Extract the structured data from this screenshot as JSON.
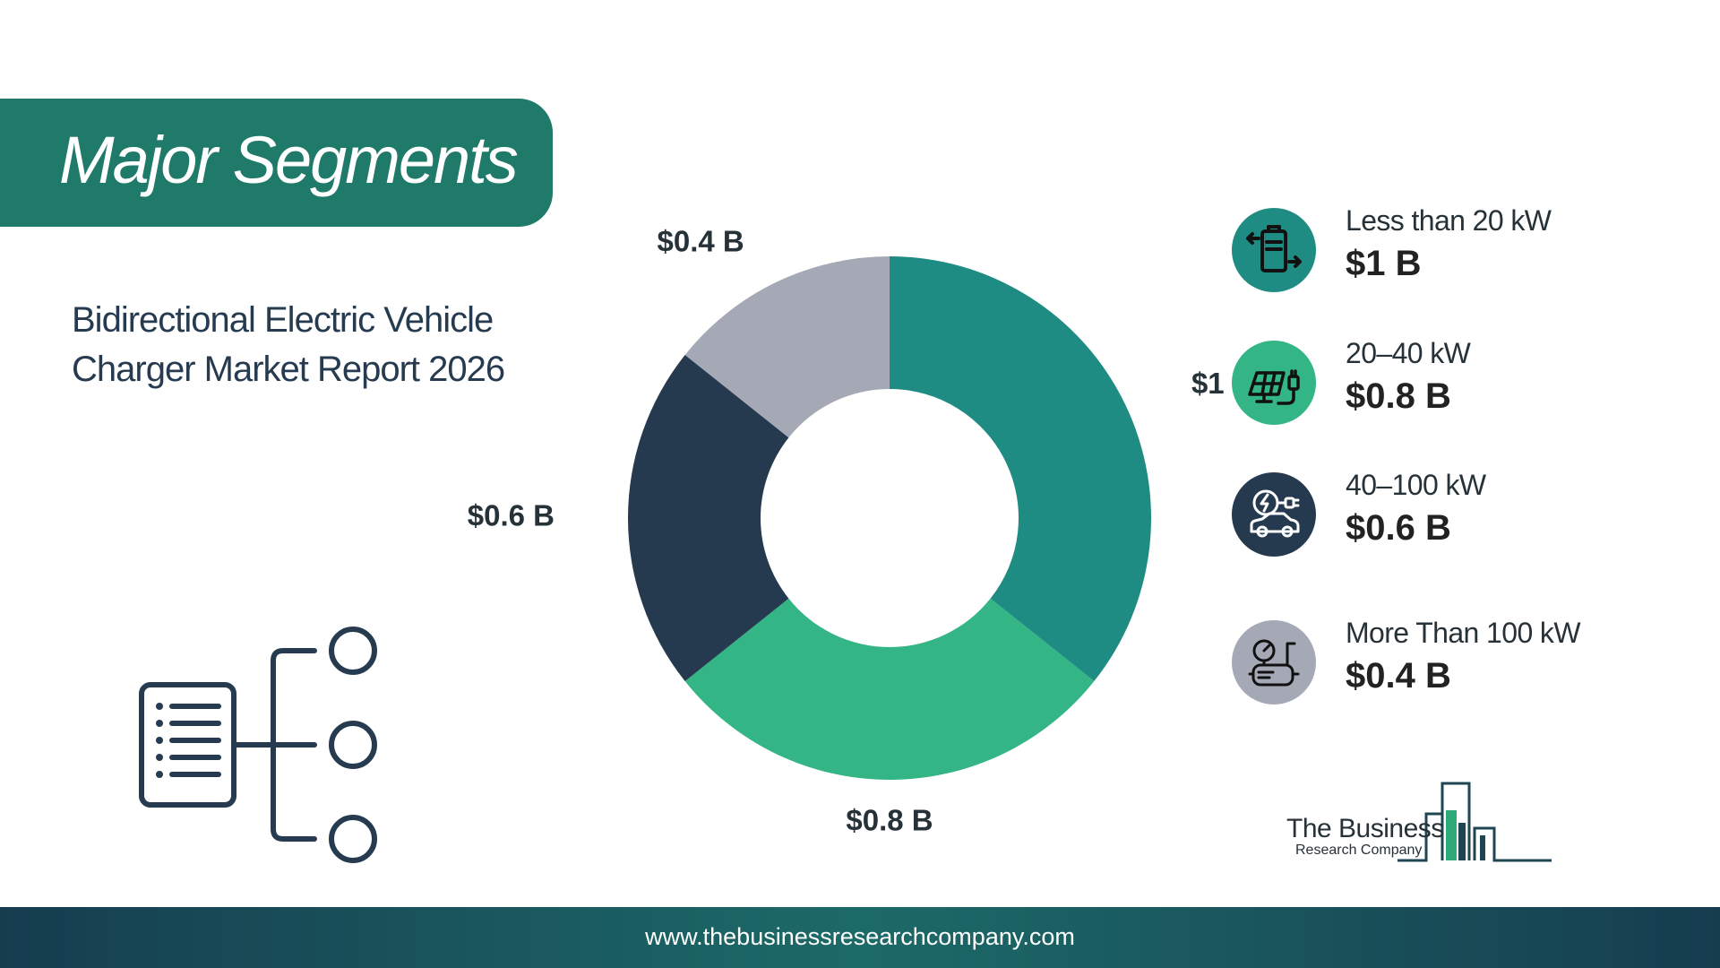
{
  "banner": {
    "title": "Major Segments"
  },
  "report": {
    "subtitle": "Bidirectional Electric Vehicle Charger Market Report 2026"
  },
  "chart_data": {
    "type": "pie",
    "donut": true,
    "slices": [
      {
        "label": "Less than 20 kW",
        "value": 1.0,
        "value_label": "$1 B",
        "color": "#1e8c82"
      },
      {
        "label": "20–40 kW",
        "value": 0.8,
        "value_label": "$0.8 B",
        "color": "#33b585"
      },
      {
        "label": "40–100 kW",
        "value": 0.6,
        "value_label": "$0.6 B",
        "color": "#253a4f"
      },
      {
        "label": "More Than 100 kW",
        "value": 0.4,
        "value_label": "$0.4 B",
        "color": "#a5a9b6"
      }
    ],
    "legend_placement": "right"
  },
  "legend": {
    "items": [
      {
        "name": "Less than 20 kW",
        "value": "$1 B",
        "icon": "battery-swap-icon",
        "color": "#1e8c82"
      },
      {
        "name": "20–40 kW",
        "value": "$0.8 B",
        "icon": "solar-panel-plug-icon",
        "color": "#33b585"
      },
      {
        "name": "40–100 kW",
        "value": "$0.6 B",
        "icon": "electric-car-charging-icon",
        "color": "#253a4f"
      },
      {
        "name": "More Than 100 kW",
        "value": "$0.4 B",
        "icon": "gauge-machine-icon",
        "color": "#a5a9b6"
      }
    ]
  },
  "logo": {
    "line1": "The Business",
    "line2": "Research Company"
  },
  "footer": {
    "url": "www.thebusinessresearchcompany.com"
  }
}
